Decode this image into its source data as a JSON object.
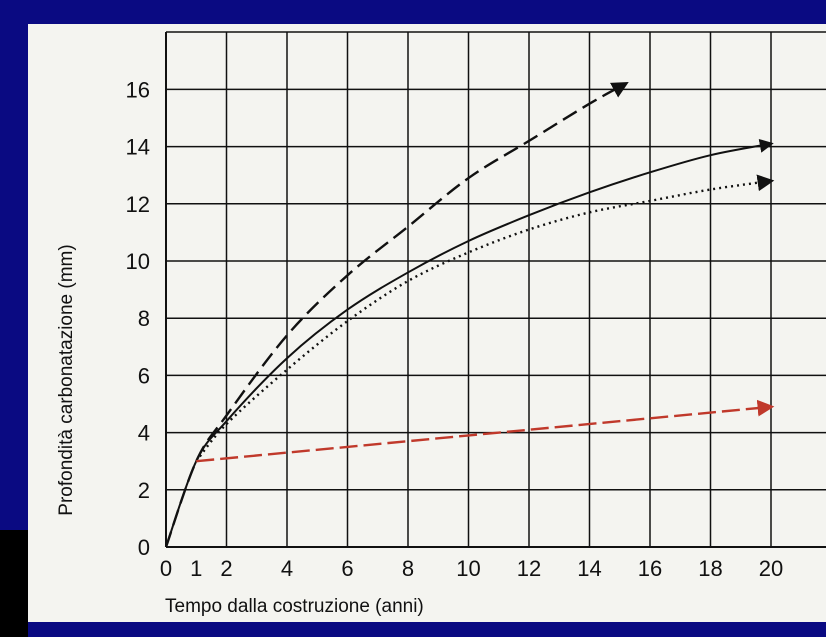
{
  "chart_data": {
    "type": "line",
    "title": "",
    "xlabel": "Tempo dalla costruzione (anni)",
    "ylabel": "Profondità carbonatazione (mm)",
    "xlim": [
      0,
      22
    ],
    "ylim": [
      0,
      17.5
    ],
    "x_tick_labels": [
      "0",
      "1",
      "2",
      "4",
      "6",
      "8",
      "10",
      "12",
      "14",
      "16",
      "18",
      "20"
    ],
    "x_tick_values": [
      0,
      1,
      2,
      4,
      6,
      8,
      10,
      12,
      14,
      16,
      18,
      20
    ],
    "y_tick_labels": [
      "0",
      "2",
      "4",
      "6",
      "8",
      "10",
      "12",
      "14",
      "16"
    ],
    "y_tick_values": [
      0,
      2,
      4,
      6,
      8,
      10,
      12,
      14,
      16
    ],
    "grid": true,
    "colors": {
      "frame": "#0a0a82",
      "paper": "#f4f4f0",
      "grid": "#111111",
      "curves": "#111111",
      "red_arrow": "#c0392b"
    },
    "series": [
      {
        "style": "dashed",
        "color": "#111111",
        "x": [
          0,
          1,
          2,
          4,
          6,
          8,
          10,
          12,
          14,
          15.2
        ],
        "y": [
          0,
          3.0,
          4.6,
          7.4,
          9.5,
          11.2,
          12.9,
          14.2,
          15.5,
          16.2
        ]
      },
      {
        "style": "solid",
        "color": "#111111",
        "x": [
          0,
          1,
          2,
          4,
          6,
          8,
          10,
          12,
          14,
          16,
          18,
          20
        ],
        "y": [
          0,
          3.0,
          4.4,
          6.6,
          8.3,
          9.6,
          10.7,
          11.6,
          12.4,
          13.1,
          13.7,
          14.1
        ]
      },
      {
        "style": "dotted",
        "color": "#111111",
        "x": [
          1,
          2,
          4,
          6,
          8,
          10,
          12,
          14,
          16,
          18,
          20
        ],
        "y": [
          3.0,
          4.3,
          6.2,
          7.9,
          9.3,
          10.3,
          11.1,
          11.7,
          12.1,
          12.5,
          12.8
        ]
      },
      {
        "style": "dashed",
        "color": "#c0392b",
        "x": [
          1,
          20
        ],
        "y": [
          3.0,
          4.9
        ]
      }
    ]
  }
}
